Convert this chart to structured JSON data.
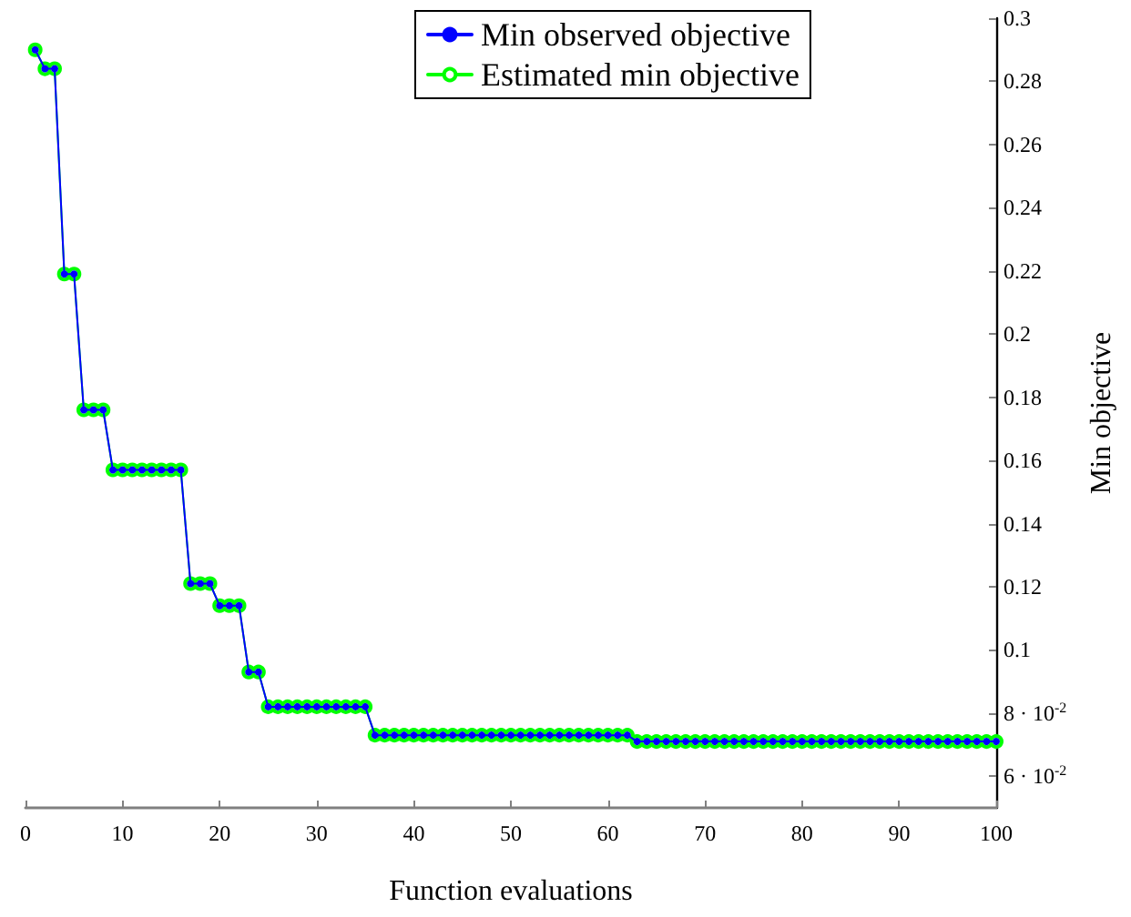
{
  "chart_data": {
    "type": "line",
    "xlabel": "Function evaluations",
    "ylabel": "Min objective",
    "x": [
      1,
      2,
      3,
      4,
      5,
      6,
      7,
      8,
      9,
      10,
      11,
      12,
      13,
      14,
      15,
      16,
      17,
      18,
      19,
      20,
      21,
      22,
      23,
      24,
      25,
      26,
      27,
      28,
      29,
      30,
      31,
      32,
      33,
      34,
      35,
      36,
      37,
      38,
      39,
      40,
      41,
      42,
      43,
      44,
      45,
      46,
      47,
      48,
      49,
      50,
      51,
      52,
      53,
      54,
      55,
      56,
      57,
      58,
      59,
      60,
      61,
      62,
      63,
      64,
      65,
      66,
      67,
      68,
      69,
      70,
      71,
      72,
      73,
      74,
      75,
      76,
      77,
      78,
      79,
      80,
      81,
      82,
      83,
      84,
      85,
      86,
      87,
      88,
      89,
      90,
      91,
      92,
      93,
      94,
      95,
      96,
      97,
      98,
      99,
      100
    ],
    "series": [
      {
        "name": "Min observed objective",
        "color": "#0000ff",
        "marker": "circle",
        "values": [
          0.29,
          0.284,
          0.284,
          0.219,
          0.219,
          0.176,
          0.176,
          0.176,
          0.157,
          0.157,
          0.157,
          0.157,
          0.157,
          0.157,
          0.157,
          0.157,
          0.121,
          0.121,
          0.121,
          0.114,
          0.114,
          0.114,
          0.093,
          0.093,
          0.082,
          0.082,
          0.082,
          0.082,
          0.082,
          0.082,
          0.082,
          0.082,
          0.082,
          0.082,
          0.082,
          0.073,
          0.073,
          0.073,
          0.073,
          0.073,
          0.073,
          0.073,
          0.073,
          0.073,
          0.073,
          0.073,
          0.073,
          0.073,
          0.073,
          0.073,
          0.073,
          0.073,
          0.073,
          0.073,
          0.073,
          0.073,
          0.073,
          0.073,
          0.073,
          0.073,
          0.073,
          0.073,
          0.071,
          0.071,
          0.071,
          0.071,
          0.071,
          0.071,
          0.071,
          0.071,
          0.071,
          0.071,
          0.071,
          0.071,
          0.071,
          0.071,
          0.071,
          0.071,
          0.071,
          0.071,
          0.071,
          0.071,
          0.071,
          0.071,
          0.071,
          0.071,
          0.071,
          0.071,
          0.071,
          0.071,
          0.071,
          0.071,
          0.071,
          0.071,
          0.071,
          0.071,
          0.071,
          0.071,
          0.071,
          0.071
        ]
      },
      {
        "name": "Estimated min objective",
        "color": "#00ff00",
        "marker": "circle",
        "values": [
          0.29,
          0.284,
          0.284,
          0.219,
          0.219,
          0.176,
          0.176,
          0.176,
          0.157,
          0.157,
          0.157,
          0.157,
          0.157,
          0.157,
          0.157,
          0.157,
          0.121,
          0.121,
          0.121,
          0.114,
          0.114,
          0.114,
          0.093,
          0.093,
          0.082,
          0.082,
          0.082,
          0.082,
          0.082,
          0.082,
          0.082,
          0.082,
          0.082,
          0.082,
          0.082,
          0.073,
          0.073,
          0.073,
          0.073,
          0.073,
          0.073,
          0.073,
          0.073,
          0.073,
          0.073,
          0.073,
          0.073,
          0.073,
          0.073,
          0.073,
          0.073,
          0.073,
          0.073,
          0.073,
          0.073,
          0.073,
          0.073,
          0.073,
          0.073,
          0.073,
          0.073,
          0.073,
          0.071,
          0.071,
          0.071,
          0.071,
          0.071,
          0.071,
          0.071,
          0.071,
          0.071,
          0.071,
          0.071,
          0.071,
          0.071,
          0.071,
          0.071,
          0.071,
          0.071,
          0.071,
          0.071,
          0.071,
          0.071,
          0.071,
          0.071,
          0.071,
          0.071,
          0.071,
          0.071,
          0.071,
          0.071,
          0.071,
          0.071,
          0.071,
          0.071,
          0.071,
          0.071,
          0.071,
          0.071,
          0.071
        ]
      }
    ],
    "xlim": [
      0,
      100
    ],
    "xticks": [
      0,
      10,
      20,
      30,
      40,
      50,
      60,
      70,
      80,
      90,
      100
    ],
    "ylim": [
      0.05,
      0.3
    ],
    "yticks": [
      {
        "value": 0.06,
        "label": "6 · 10$^{-2}$"
      },
      {
        "value": 0.08,
        "label": "8 · 10$^{-2}$"
      },
      0.1,
      0.12,
      0.14,
      0.16,
      0.18,
      0.2,
      0.22,
      0.24,
      0.26,
      0.28,
      0.3
    ],
    "grid": false,
    "legend": "top",
    "line_style": "solid"
  }
}
